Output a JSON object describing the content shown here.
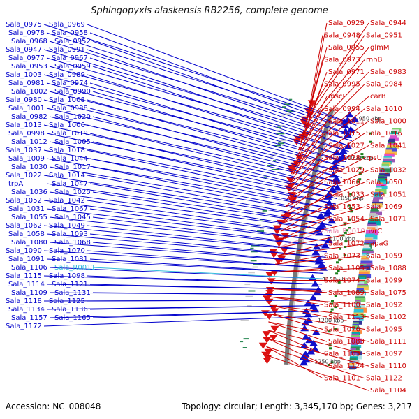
{
  "title": "Sphingopyxis alaskensis RB2256, complete genome",
  "accession": "Accession: NC_008048",
  "topology": "Topology: circular; Length: 3,345,170 bp; Genes: 3,217",
  "ruler": [
    "950 kbp",
    "1000 kbp",
    "1050 kbp",
    "1100 kbp",
    "1150 kbp",
    "1200 kbp",
    "1250 kbp"
  ],
  "colors": {
    "forward_label": "#0000cc",
    "reverse_label": "#cc0000",
    "forward_rna": "#33bbdd",
    "reverse_rna": "#ee88aa",
    "backbone": "#777777"
  },
  "forward_genes": [
    "Sala_0975",
    "Sala_0969",
    "Sala_0978",
    "Sala_0958",
    "Sala_0968",
    "Sala_0952",
    "Sala_0947",
    "Sala_0991",
    "Sala_0977",
    "Sala_0967",
    "Sala_0953",
    "Sala_0959",
    "Sala_1003",
    "Sala_0989",
    "Sala_0981",
    "Sala_0974",
    "Sala_1002",
    "Sala_0990",
    "Sala_0980",
    "Sala_1008",
    "Sala_1001",
    "Sala_0988",
    "Sala_0982",
    "Sala_1020",
    "Sala_1013",
    "Sala_1006",
    "Sala_0998",
    "Sala_1019",
    "Sala_1012",
    "Sala_1005",
    "Sala_1037",
    "Sala_1018",
    "Sala_1009",
    "Sala_1044",
    "Sala_1030",
    "Sala_1017",
    "Sala_1022",
    "Sala_1014",
    "trpA",
    "Sala_1047",
    "Sala_1036",
    "Sala_1025",
    "Sala_1052",
    "Sala_1042",
    "Sala_1031",
    "Sala_1067",
    "Sala_1055",
    "Sala_1045",
    "Sala_1062",
    "Sala_1049",
    "Sala_1058",
    "Sala_1093",
    "Sala_1080",
    "Sala_1068",
    "Sala_1090",
    "Sala_1070",
    "Sala_1091",
    "Sala_1081",
    "Sala_1106",
    "Sala_R0011",
    "Sala_1115",
    "Sala_1098",
    "Sala_1114",
    "Sala_1121",
    "Sala_1109",
    "Sala_1131",
    "Sala_1118",
    "Sala_1125",
    "Sala_1134",
    "Sala_1136",
    "Sala_1157",
    "Sala_1165",
    "Sala_1172"
  ],
  "reverse_genes": [
    "Sala_0929",
    "Sala_0944",
    "Sala_0948",
    "Sala_0951",
    "Sala_0955",
    "glmM",
    "Sala_0973",
    "rnhB",
    "Sala_0971",
    "Sala_0983",
    "Sala_0995",
    "Sala_0984",
    "mscL",
    "carB",
    "Sala_0994",
    "Sala_1010",
    "Sala_1011",
    "Sala_1000",
    "Sala_1015",
    "Sala_1016",
    "Sala_1027",
    "Sala_1041",
    "Sala_1028",
    "rpsU",
    "Sala_1029",
    "Sala_1032",
    "Sala_1060",
    "Sala_1050",
    "Sala_1033",
    "Sala_1051",
    "Sala_1053",
    "Sala_1069",
    "Sala_1054",
    "Sala_1071",
    "Sala_R0010",
    "uvrC",
    "Sala_1072",
    "apaG",
    "Sala_1073",
    "Sala_1059",
    "Sala_1105",
    "Sala_1088",
    "Sala_1074",
    "Sala_1099",
    "Sala_1089",
    "Sala_1075",
    "Sala_1100",
    "Sala_1092",
    "Sala_1113",
    "Sala_1102",
    "Sala_1076",
    "Sala_1095",
    "Sala_1083",
    "Sala_1111",
    "Sala_1103",
    "Sala_1097",
    "Sala_1124",
    "Sala_1110",
    "Sala_1101",
    "Sala_1122",
    "Sala_1104"
  ],
  "rna_genes": [
    "Sala_R0011",
    "Sala_R0010"
  ]
}
